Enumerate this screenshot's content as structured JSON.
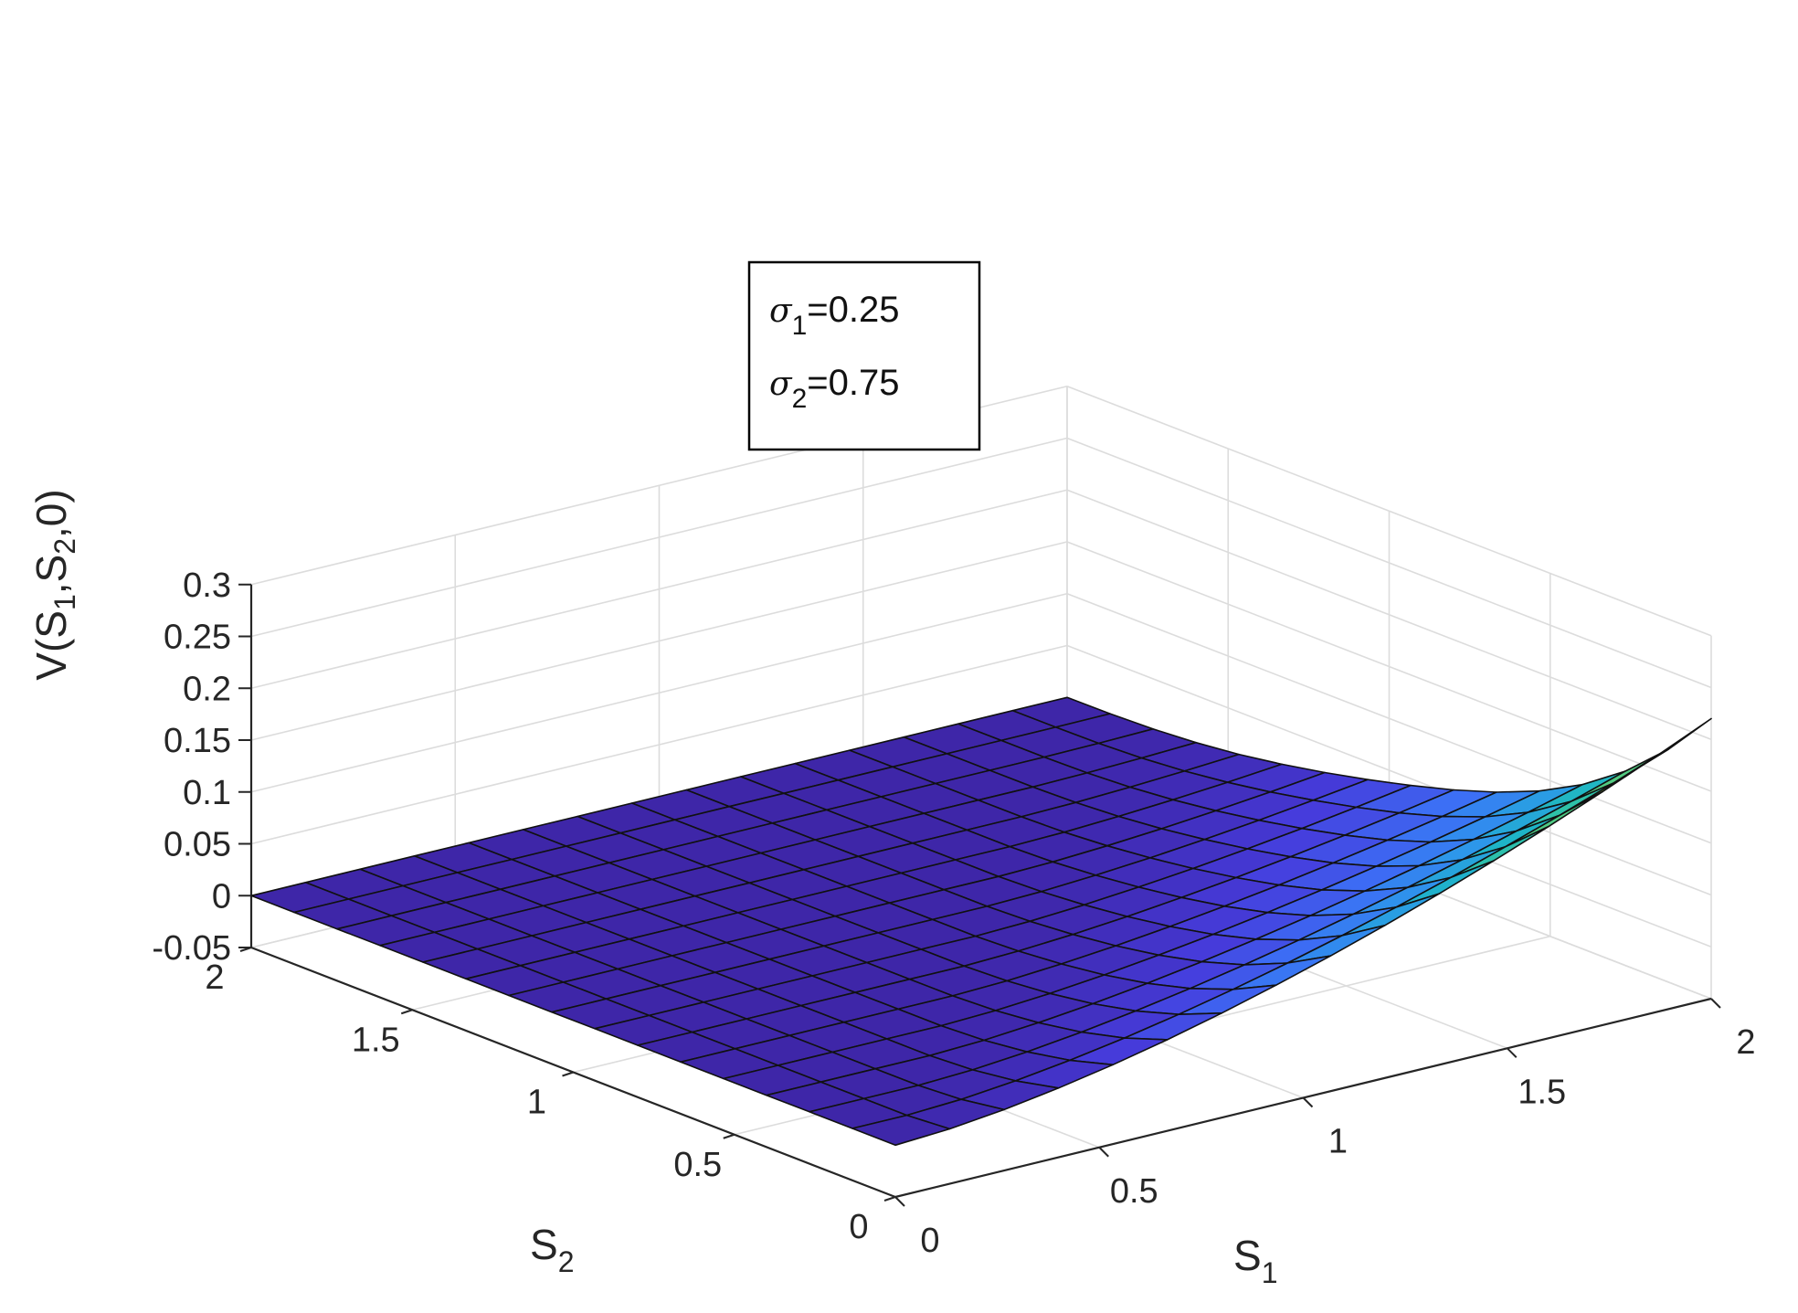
{
  "chart_data": {
    "type": "surface",
    "zlabel": {
      "pre": "V(S",
      "sub1": "1",
      "mid": ",S",
      "sub2": "2",
      "post": ",0)"
    },
    "xlabel": {
      "main": "S",
      "sub": "1"
    },
    "ylabel": {
      "main": "S",
      "sub": "2"
    },
    "xlim": [
      0,
      2
    ],
    "ylim": [
      0,
      2
    ],
    "zlim": [
      -0.05,
      0.3
    ],
    "x_ticks": [
      "0",
      "0.5",
      "1",
      "1.5",
      "2"
    ],
    "y_ticks": [
      "0",
      "0.5",
      "1",
      "1.5",
      "2"
    ],
    "z_ticks": [
      "-0.05",
      "0",
      "0.05",
      "0.1",
      "0.15",
      "0.2",
      "0.25",
      "0.3"
    ],
    "grid": true,
    "colormap": "parula",
    "mesh_points_per_axis": 16,
    "surface": {
      "peak_value": 0.22,
      "peak_at": {
        "S1": 2,
        "S2": 0
      },
      "zero_region": "S2 > S1",
      "edge_value_at_S2_0": 0
    },
    "annotation": {
      "line1": {
        "symbol": "σ",
        "sub": "1",
        "value": "=0.25"
      },
      "line2": {
        "symbol": "σ",
        "sub": "2",
        "value": "=0.75"
      }
    }
  }
}
